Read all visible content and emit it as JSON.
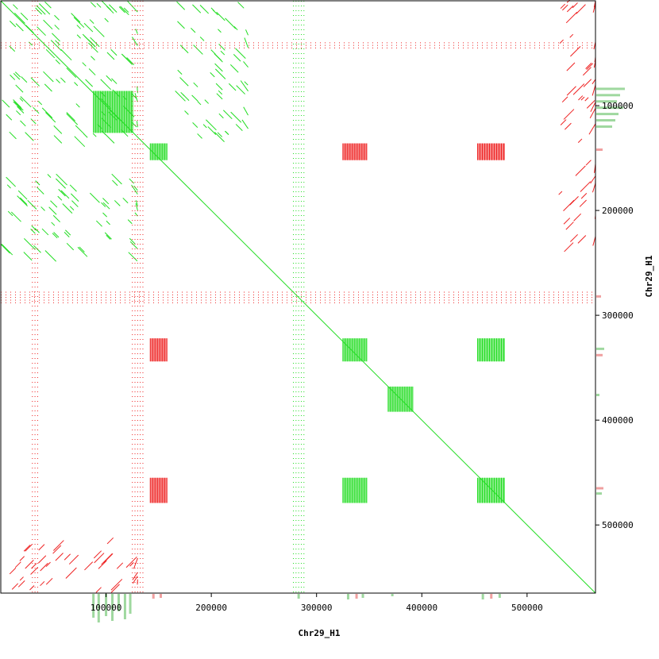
{
  "chart_data": {
    "type": "scatter",
    "subtype": "dotplot",
    "xlabel": "Chr29_H1",
    "ylabel": "Chr29_H1",
    "xlim": [
      0,
      565000
    ],
    "ylim": [
      0,
      565000
    ],
    "y_direction": "down",
    "x_ticks": [
      100000,
      200000,
      300000,
      400000,
      500000
    ],
    "x_tick_labels": [
      "100000",
      "200000",
      "300000",
      "400000",
      "500000"
    ],
    "y_ticks": [
      100000,
      200000,
      300000,
      400000,
      500000
    ],
    "y_tick_labels": [
      "100000",
      "200000",
      "300000",
      "400000",
      "500000"
    ],
    "colors": {
      "forward": "#22dd22",
      "reverse": "#ee2222",
      "forward_hist": "#9fd89f",
      "reverse_hist": "#f0a0a0"
    },
    "main_diagonal": {
      "from": [
        0,
        0
      ],
      "to": [
        565000,
        565000
      ],
      "orientation": "forward"
    },
    "blocks": [
      {
        "x": [
          142000,
          158000
        ],
        "y": [
          136000,
          152000
        ],
        "orientation": "forward"
      },
      {
        "x": [
          325000,
          348000
        ],
        "y": [
          136000,
          152000
        ],
        "orientation": "reverse"
      },
      {
        "x": [
          453000,
          479000
        ],
        "y": [
          136000,
          152000
        ],
        "orientation": "reverse"
      },
      {
        "x": [
          325000,
          348000
        ],
        "y": [
          322000,
          344000
        ],
        "orientation": "forward"
      },
      {
        "x": [
          142000,
          158000
        ],
        "y": [
          322000,
          344000
        ],
        "orientation": "reverse"
      },
      {
        "x": [
          453000,
          479000
        ],
        "y": [
          322000,
          344000
        ],
        "orientation": "forward"
      },
      {
        "x": [
          453000,
          479000
        ],
        "y": [
          455000,
          479000
        ],
        "orientation": "forward"
      },
      {
        "x": [
          142000,
          158000
        ],
        "y": [
          455000,
          479000
        ],
        "orientation": "reverse"
      },
      {
        "x": [
          325000,
          348000
        ],
        "y": [
          455000,
          479000
        ],
        "orientation": "forward"
      },
      {
        "x": [
          88000,
          126000
        ],
        "y": [
          86000,
          126000
        ],
        "orientation": "forward"
      },
      {
        "x": [
          368000,
          392000
        ],
        "y": [
          368000,
          392000
        ],
        "orientation": "forward"
      }
    ],
    "repeat_clusters": [
      {
        "x": [
          0,
          130000
        ],
        "y": [
          0,
          130000
        ],
        "orientation": "forward"
      },
      {
        "x": [
          165000,
          235000
        ],
        "y": [
          0,
          130000
        ],
        "orientation": "forward"
      },
      {
        "x": [
          0,
          130000
        ],
        "y": [
          165000,
          240000
        ],
        "orientation": "forward"
      },
      {
        "x": [
          0,
          130000
        ],
        "y": [
          518000,
          565000
        ],
        "orientation": "reverse"
      },
      {
        "x": [
          530000,
          565000
        ],
        "y": [
          0,
          240000
        ],
        "orientation": "reverse"
      }
    ],
    "bands": [
      {
        "axis": "x",
        "range": [
          278000,
          288000
        ],
        "orientation": "forward"
      },
      {
        "axis": "x",
        "range": [
          30000,
          35000
        ],
        "orientation": "reverse"
      },
      {
        "axis": "x",
        "range": [
          125000,
          135000
        ],
        "orientation": "reverse"
      },
      {
        "axis": "y",
        "range": [
          278000,
          288000
        ],
        "orientation": "reverse"
      },
      {
        "axis": "y",
        "range": [
          40000,
          46000
        ],
        "orientation": "reverse"
      }
    ],
    "marginal_hist_x": [
      {
        "x": 88000,
        "h": 30,
        "c": "forward"
      },
      {
        "x": 93000,
        "h": 36,
        "c": "forward"
      },
      {
        "x": 100000,
        "h": 28,
        "c": "forward"
      },
      {
        "x": 106000,
        "h": 34,
        "c": "forward"
      },
      {
        "x": 112000,
        "h": 22,
        "c": "forward"
      },
      {
        "x": 118000,
        "h": 32,
        "c": "forward"
      },
      {
        "x": 123000,
        "h": 25,
        "c": "forward"
      },
      {
        "x": 145000,
        "h": 6,
        "c": "reverse"
      },
      {
        "x": 152000,
        "h": 5,
        "c": "reverse"
      },
      {
        "x": 283000,
        "h": 6,
        "c": "forward"
      },
      {
        "x": 330000,
        "h": 7,
        "c": "forward"
      },
      {
        "x": 338000,
        "h": 6,
        "c": "reverse"
      },
      {
        "x": 344000,
        "h": 5,
        "c": "forward"
      },
      {
        "x": 372000,
        "h": 3,
        "c": "forward"
      },
      {
        "x": 458000,
        "h": 7,
        "c": "forward"
      },
      {
        "x": 466000,
        "h": 6,
        "c": "reverse"
      },
      {
        "x": 474000,
        "h": 5,
        "c": "forward"
      }
    ],
    "marginal_hist_y": [
      {
        "y": 84000,
        "h": 36,
        "c": "forward"
      },
      {
        "y": 90000,
        "h": 30,
        "c": "forward"
      },
      {
        "y": 96000,
        "h": 26,
        "c": "forward"
      },
      {
        "y": 102000,
        "h": 34,
        "c": "forward"
      },
      {
        "y": 108000,
        "h": 28,
        "c": "forward"
      },
      {
        "y": 114000,
        "h": 24,
        "c": "forward"
      },
      {
        "y": 120000,
        "h": 20,
        "c": "forward"
      },
      {
        "y": 142000,
        "h": 8,
        "c": "reverse"
      },
      {
        "y": 282000,
        "h": 6,
        "c": "reverse"
      },
      {
        "y": 332000,
        "h": 10,
        "c": "forward"
      },
      {
        "y": 338000,
        "h": 8,
        "c": "reverse"
      },
      {
        "y": 376000,
        "h": 4,
        "c": "forward"
      },
      {
        "y": 465000,
        "h": 9,
        "c": "reverse"
      },
      {
        "y": 470000,
        "h": 7,
        "c": "forward"
      }
    ]
  }
}
